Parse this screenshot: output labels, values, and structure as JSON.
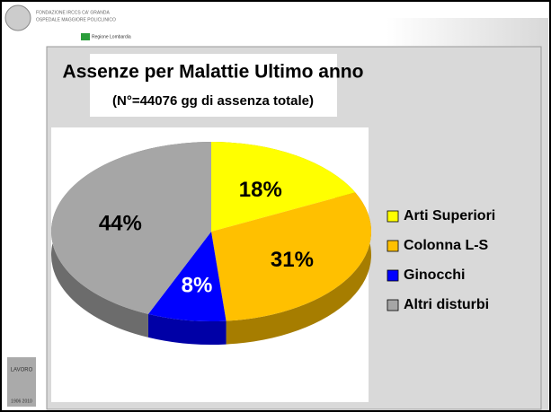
{
  "header": {
    "institution": "FONDAZIONE IRCCS CA' GRANDA",
    "hospital": "OSPEDALE MAGGIORE POLICLINICO",
    "region": "Regione Lombardia"
  },
  "footer_logo": {
    "name": "LAVORO",
    "years": "1906 2010"
  },
  "chart_data": {
    "type": "pie",
    "title": "Assenze per Malattie Ultimo anno",
    "subtitle": "(N°=44076 gg di assenza totale)",
    "categories": [
      "Arti Superiori",
      "Colonna L-S",
      "Ginocchi",
      "Altri disturbi"
    ],
    "values": [
      18,
      31,
      8,
      44
    ],
    "value_labels": [
      "18%",
      "31%",
      "8%",
      "44%"
    ],
    "colors": [
      "#ffff00",
      "#ffc000",
      "#0000ff",
      "#a6a6a6"
    ],
    "legend": "right"
  }
}
